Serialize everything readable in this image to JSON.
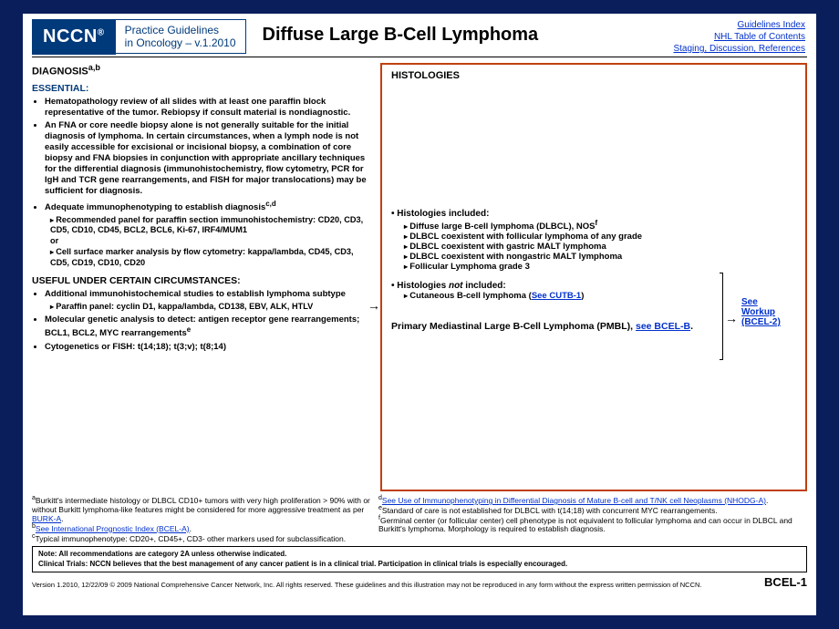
{
  "header": {
    "logo": "NCCN",
    "logo_reg": "®",
    "sub1": "Practice Guidelines",
    "sub2": "in Oncology – v.1.2010",
    "title": "Diffuse Large B-Cell Lymphoma",
    "link1": "Guidelines Index",
    "link2": "NHL Table of Contents",
    "link3": "Staging, Discussion, References"
  },
  "left": {
    "diag": "DIAGNOSIS",
    "diag_sup": "a,b",
    "ess": "ESSENTIAL:",
    "l1": "Hematopathology review of all slides with at least one paraffin block representative of the tumor. Rebiopsy if consult material is nondiagnostic.",
    "l2": "An FNA or core needle biopsy alone is not generally suitable for the initial diagnosis of lymphoma. In certain circumstances, when a lymph node is not easily accessible for excisional or incisional biopsy, a combination of core biopsy and FNA biopsies in conjunction with appropriate ancillary techniques for the differential diagnosis (immunohistochemistry, flow cytometry, PCR for IgH and TCR gene rearrangements, and FISH for major translocations) may be sufficient for diagnosis.",
    "l3": "Adequate immunophenotyping to establish diagnosis",
    "l3_sup": "c,d",
    "l3a": "Recommended panel for paraffin section immunohistochemistry: CD20, CD3, CD5, CD10, CD45, BCL2, BCL6, Ki-67, IRF4/MUM1",
    "l3or": "or",
    "l3b": "Cell surface marker analysis by flow cytometry: kappa/lambda, CD45, CD3, CD5, CD19, CD10, CD20",
    "useful_h": "USEFUL UNDER CERTAIN CIRCUMSTANCES:",
    "u1": "Additional immunohistochemical studies to establish lymphoma subtype",
    "u1a": "Paraffin panel: cyclin D1, kappa/lambda, CD138, EBV, ALK, HTLV",
    "u2": "Molecular genetic analysis to detect: antigen receptor gene rearrangements; BCL1, BCL2, MYC rearrangements",
    "u2_sup": "e",
    "u3": "Cytogenetics or FISH: t(14;18); t(3;v); t(8;14)"
  },
  "right": {
    "hist_h": "HISTOLOGIES",
    "inc": "Histologies included:",
    "i1": "Diffuse large B-cell lymphoma (DLBCL), NOS",
    "i1_sup": "f",
    "i2": "DLBCL coexistent with follicular lymphoma of any grade",
    "i3": "DLBCL coexistent with gastric MALT lymphoma",
    "i4": "DLBCL coexistent with nongastric MALT lymphoma",
    "i5": "Follicular Lymphoma grade 3",
    "notinc_pre": "Histologies ",
    "notinc_it": "not",
    "notinc_post": " included:",
    "n1_pre": "Cutaneous B-cell lymphoma (",
    "n1_link": "See CUTB-1",
    "n1_post": ")",
    "pmbl_pre": "Primary Mediastinal Large B-Cell Lymphoma (PMBL), ",
    "pmbl_link": "see BCEL-B",
    "pmbl_post": ".",
    "workup1": "See",
    "workup2": "Workup",
    "workup3": "(BCEL-2)"
  },
  "foot": {
    "a_sup": "a",
    "a_txt": "Burkitt's intermediate histology or DLBCL CD10+ tumors with very high proliferation > 90% with or without Burkitt lymphoma-like features might be considered for more aggressive treatment as per ",
    "a_link": "BURK-A",
    "b_sup": "b",
    "b_link": "See International Prognostic Index (BCEL-A)",
    "c_sup": "c",
    "c_txt": "Typical immunophenotype: CD20+, CD45+, CD3- other markers used for subclassification.",
    "d_sup": "d",
    "d_link": "See Use of Immunophenotyping in Differential Diagnosis of Mature B-cell and T/NK cell Neoplasms (NHODG-A)",
    "d_post": ".",
    "e_sup": "e",
    "e_txt": "Standard of care is not established for DLBCL with t(14;18) with concurrent MYC rearrangements.",
    "f_sup": "f",
    "f_txt": "Germinal center (or follicular center) cell phenotype is not equivalent to follicular lymphoma and can occur in DLBCL and Burkitt's lymphoma. Morphology is required to establish diagnosis.",
    "note1": "Note: All recommendations are category 2A unless otherwise indicated.",
    "note2": "Clinical Trials: NCCN believes that the best management of any cancer patient is in a clinical trial. Participation in clinical trials is especially encouraged.",
    "copy": "Version 1.2010, 12/22/09 © 2009 National Comprehensive Cancer Network, Inc. All rights reserved. These guidelines and this illustration may not be reproduced in any form without the express written permission of NCCN.",
    "page": "BCEL-1"
  }
}
